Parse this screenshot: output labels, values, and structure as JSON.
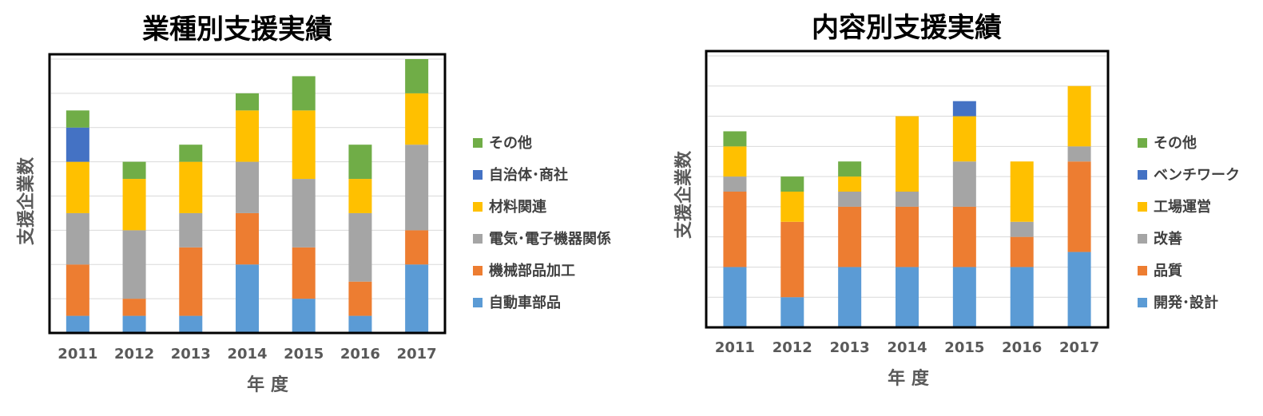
{
  "chart_data": [
    {
      "type": "bar",
      "stacked": true,
      "title": "業種別支援実績",
      "xlabel": "年 度",
      "ylabel": "支援企業数",
      "categories": [
        "2011",
        "2012",
        "2013",
        "2014",
        "2015",
        "2016",
        "2017"
      ],
      "ylim": [
        0,
        16
      ],
      "grid": true,
      "legend": "right",
      "series": [
        {
          "name": "自動車部品",
          "color": "#5B9BD5",
          "values": [
            1,
            1,
            1,
            4,
            2,
            1,
            4
          ]
        },
        {
          "name": "機械部品加工",
          "color": "#ED7D31",
          "values": [
            3,
            1,
            4,
            3,
            3,
            2,
            2
          ]
        },
        {
          "name": "電気･電子機器関係",
          "color": "#A5A5A5",
          "values": [
            3,
            4,
            2,
            3,
            4,
            4,
            5
          ]
        },
        {
          "name": "材料関連",
          "color": "#FFC000",
          "values": [
            3,
            3,
            3,
            3,
            4,
            2,
            3
          ]
        },
        {
          "name": "自治体･商社",
          "color": "#4472C4",
          "values": [
            2,
            0,
            0,
            0,
            0,
            0,
            0
          ]
        },
        {
          "name": "その他",
          "color": "#70AD47",
          "values": [
            1,
            1,
            1,
            1,
            2,
            2,
            2
          ]
        }
      ]
    },
    {
      "type": "bar",
      "stacked": true,
      "title": "内容別支援実績",
      "xlabel": "年 度",
      "ylabel": "支援企業数",
      "categories": [
        "2011",
        "2012",
        "2013",
        "2014",
        "2015",
        "2016",
        "2017"
      ],
      "ylim": [
        0,
        18
      ],
      "grid": true,
      "legend": "right",
      "series": [
        {
          "name": "開発･設計",
          "color": "#5B9BD5",
          "values": [
            4,
            2,
            4,
            4,
            4,
            4,
            5
          ]
        },
        {
          "name": "品質",
          "color": "#ED7D31",
          "values": [
            5,
            5,
            4,
            4,
            4,
            2,
            6
          ]
        },
        {
          "name": "改善",
          "color": "#A5A5A5",
          "values": [
            1,
            0,
            1,
            1,
            3,
            1,
            1
          ]
        },
        {
          "name": "工場運営",
          "color": "#FFC000",
          "values": [
            2,
            2,
            1,
            5,
            3,
            4,
            4
          ]
        },
        {
          "name": "ベンチワーク",
          "color": "#4472C4",
          "values": [
            0,
            0,
            0,
            0,
            1,
            0,
            0
          ]
        },
        {
          "name": "その他",
          "color": "#70AD47",
          "values": [
            1,
            1,
            1,
            0,
            0,
            0,
            0
          ]
        }
      ]
    }
  ]
}
